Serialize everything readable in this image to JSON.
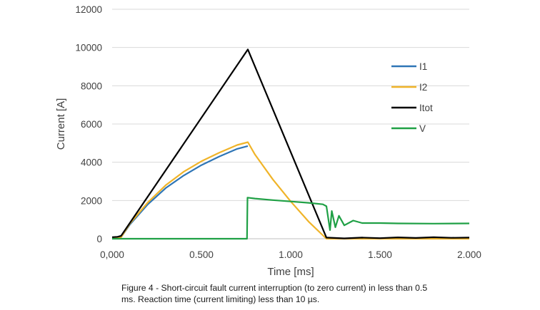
{
  "chart_data": {
    "type": "line",
    "xlabel": "Time [ms]",
    "ylabel": "Current [A]",
    "xlim": [
      0,
      2
    ],
    "ylim": [
      0,
      12000
    ],
    "xticks": [
      0,
      0.5,
      1,
      1.5,
      2
    ],
    "xtick_labels": [
      "0,000",
      "0.500",
      "1.000",
      "1.500",
      "2.000"
    ],
    "yticks": [
      0,
      2000,
      4000,
      6000,
      8000,
      10000,
      12000
    ],
    "ytick_labels": [
      "0",
      "2000",
      "4000",
      "6000",
      "8000",
      "10000",
      "12000"
    ],
    "grid": "horizontal",
    "legend_position": "right",
    "series": [
      {
        "name": "I1",
        "color": "#2e75b6",
        "x": [
          0,
          0.05,
          0.1,
          0.2,
          0.3,
          0.4,
          0.5,
          0.6,
          0.7,
          0.76
        ],
        "y": [
          0,
          80,
          750,
          1800,
          2650,
          3300,
          3850,
          4300,
          4700,
          4850
        ]
      },
      {
        "name": "I2",
        "color": "#f0b429",
        "x": [
          0,
          0.05,
          0.1,
          0.2,
          0.3,
          0.4,
          0.5,
          0.6,
          0.7,
          0.76,
          0.8,
          0.9,
          1.0,
          1.1,
          1.2,
          2.0
        ],
        "y": [
          0,
          80,
          800,
          1900,
          2800,
          3500,
          4050,
          4500,
          4900,
          5050,
          4400,
          3100,
          1950,
          900,
          0,
          0
        ]
      },
      {
        "name": "Itot",
        "color": "#000000",
        "x": [
          0,
          0.03,
          0.05,
          0.76,
          1.2,
          1.3,
          1.4,
          1.5,
          1.6,
          1.7,
          1.8,
          1.9,
          2.0
        ],
        "y": [
          80,
          100,
          150,
          9900,
          60,
          20,
          60,
          30,
          70,
          40,
          80,
          50,
          60
        ]
      },
      {
        "name": "V",
        "color": "#1fa045",
        "x": [
          0,
          0.755,
          0.758,
          0.8,
          0.9,
          1.0,
          1.1,
          1.18,
          1.2,
          1.22,
          1.23,
          1.25,
          1.27,
          1.3,
          1.35,
          1.4,
          1.5,
          1.6,
          1.8,
          2.0
        ],
        "y": [
          0,
          0,
          2150,
          2100,
          2020,
          1950,
          1880,
          1800,
          1700,
          450,
          1450,
          600,
          1200,
          700,
          950,
          820,
          820,
          800,
          790,
          800
        ]
      }
    ]
  },
  "caption": {
    "line1": "Figure 4 - Short-circuit fault current interruption (to zero current) in less than 0.5",
    "line2": "ms. Reaction time (current limiting) less than 10 µs."
  }
}
